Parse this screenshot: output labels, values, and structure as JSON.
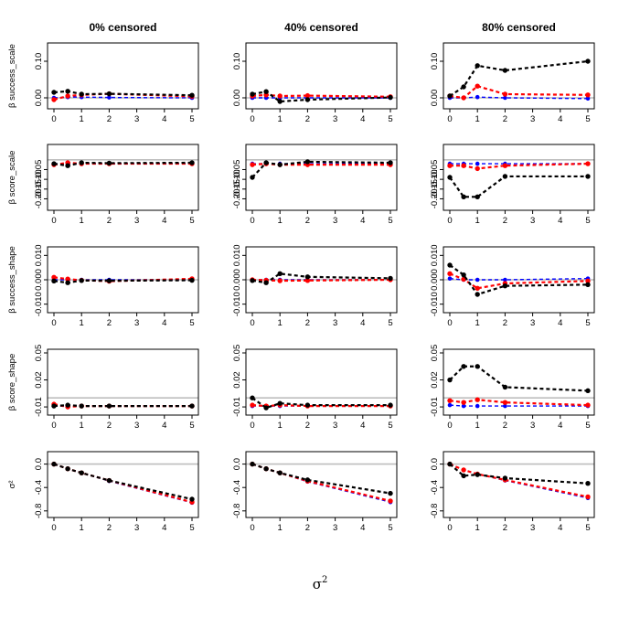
{
  "chart_data": {
    "type": "line",
    "title": "",
    "xlabel_base": "σ",
    "xlabel_sup": "2",
    "x": [
      0,
      0.5,
      1,
      2,
      5
    ],
    "x_axis": {
      "range": [
        0,
        5
      ],
      "ticks": [
        "0",
        "1",
        "2",
        "3",
        "4",
        "5"
      ]
    },
    "columns": [
      "0% censored",
      "40% censored",
      "80% censored"
    ],
    "series_colors": {
      "black": "#000000",
      "red": "#ff0000",
      "blue": "#0000ff",
      "reference": "#bebebe"
    },
    "rows": [
      {
        "ylabel": "β success_scale",
        "ylim": [
          -0.02,
          0.14
        ],
        "yticks": [
          "0.00",
          "0.10"
        ],
        "ytick_values": [
          0.0,
          0.1
        ],
        "panels": [
          {
            "black": [
              0.015,
              0.018,
              0.01,
              0.011,
              0.007
            ],
            "red": [
              -0.005,
              0.005,
              0.008,
              0.011,
              0.004
            ],
            "blue": [
              0.0,
              0.002,
              0.002,
              0.001,
              0.0
            ]
          },
          {
            "black": [
              0.01,
              0.017,
              -0.01,
              -0.005,
              0.001
            ],
            "red": [
              0.005,
              0.008,
              0.005,
              0.006,
              0.003
            ],
            "blue": [
              0.0,
              0.0,
              0.0,
              0.0,
              0.0
            ]
          },
          {
            "black": [
              0.005,
              0.03,
              0.088,
              0.075,
              0.1
            ],
            "red": [
              0.005,
              0.0,
              0.032,
              0.01,
              0.008
            ],
            "blue": [
              0.0,
              0.0,
              0.002,
              0.0,
              -0.002
            ]
          }
        ]
      },
      {
        "ylabel": "β score_scale",
        "ylim": [
          -0.24,
          0.06
        ],
        "yticks": [
          "-0.05",
          "-0.10",
          "-0.15",
          "-0.20"
        ],
        "ytick_values": [
          -0.05,
          -0.1,
          -0.15,
          -0.2
        ],
        "panels": [
          {
            "black": [
              -0.02,
              -0.03,
              -0.015,
              -0.017,
              -0.015
            ],
            "red": [
              -0.025,
              -0.015,
              -0.02,
              -0.02,
              -0.02
            ],
            "blue": [
              -0.02,
              -0.02,
              -0.02,
              -0.02,
              -0.02
            ]
          },
          {
            "black": [
              -0.09,
              -0.015,
              -0.025,
              -0.01,
              -0.015
            ],
            "red": [
              -0.025,
              -0.02,
              -0.025,
              -0.025,
              -0.025
            ],
            "blue": [
              -0.02,
              -0.02,
              -0.02,
              -0.02,
              -0.02
            ]
          },
          {
            "black": [
              -0.09,
              -0.19,
              -0.19,
              -0.085,
              -0.085
            ],
            "red": [
              -0.03,
              -0.03,
              -0.045,
              -0.03,
              -0.02
            ],
            "blue": [
              -0.02,
              -0.02,
              -0.02,
              -0.02,
              -0.02
            ]
          }
        ]
      },
      {
        "ylabel": "β success_shape",
        "ylim": [
          -0.012,
          0.012
        ],
        "yticks": [
          "0.010",
          "0.000",
          "-0.010"
        ],
        "ytick_values": [
          0.01,
          0.0,
          -0.01
        ],
        "panels": [
          {
            "black": [
              -0.0005,
              -0.0012,
              -0.0003,
              -0.0004,
              -0.0002
            ],
            "red": [
              0.001,
              0.0003,
              -0.0002,
              -0.0006,
              0.0004
            ],
            "blue": [
              0.0,
              0.0,
              0.0,
              0.0,
              0.0
            ]
          },
          {
            "black": [
              -0.0003,
              -0.0012,
              0.0025,
              0.0012,
              0.0006
            ],
            "red": [
              0.0,
              -0.0002,
              -0.0004,
              -0.0003,
              0.0
            ],
            "blue": [
              0.0,
              0.0,
              0.0,
              0.0,
              0.0
            ]
          },
          {
            "black": [
              0.006,
              0.002,
              -0.006,
              -0.0025,
              -0.002
            ],
            "red": [
              0.0025,
              0.0002,
              -0.0035,
              -0.0015,
              -0.0005
            ],
            "blue": [
              0.0005,
              0.0,
              0.0,
              0.0,
              0.0005
            ]
          }
        ]
      },
      {
        "ylabel": "β score_shape",
        "ylim": [
          -0.015,
          0.05
        ],
        "yticks": [
          "0.05",
          "0.02",
          "-0.01"
        ],
        "ytick_values": [
          0.05,
          0.02,
          -0.01
        ],
        "panels": [
          {
            "black": [
              -0.009,
              -0.008,
              -0.009,
              -0.009,
              -0.009
            ],
            "red": [
              -0.007,
              -0.01,
              -0.009,
              -0.009,
              -0.009
            ],
            "blue": [
              -0.009,
              -0.009,
              -0.009,
              -0.009,
              -0.009
            ]
          },
          {
            "black": [
              0.0,
              -0.011,
              -0.006,
              -0.008,
              -0.008
            ],
            "red": [
              -0.008,
              -0.009,
              -0.008,
              -0.009,
              -0.009
            ],
            "blue": [
              -0.009,
              -0.009,
              -0.009,
              -0.009,
              -0.009
            ]
          },
          {
            "black": [
              0.02,
              0.035,
              0.035,
              0.012,
              0.008
            ],
            "red": [
              -0.003,
              -0.005,
              -0.002,
              -0.005,
              -0.008
            ],
            "blue": [
              -0.008,
              -0.009,
              -0.009,
              -0.009,
              -0.009
            ]
          }
        ]
      },
      {
        "ylabel": "σ²",
        "ylim": [
          -0.85,
          0.15
        ],
        "yticks": [
          "0.0",
          "-0.4",
          "-0.8"
        ],
        "ytick_values": [
          0.0,
          -0.4,
          -0.8
        ],
        "panels": [
          {
            "black": [
              0.0,
              -0.08,
              -0.15,
              -0.28,
              -0.6
            ],
            "red": [
              0.0,
              -0.08,
              -0.15,
              -0.28,
              -0.65
            ],
            "blue": [
              0.0,
              -0.08,
              -0.15,
              -0.29,
              -0.66
            ]
          },
          {
            "black": [
              0.0,
              -0.08,
              -0.15,
              -0.27,
              -0.5
            ],
            "red": [
              0.0,
              -0.08,
              -0.15,
              -0.29,
              -0.63
            ],
            "blue": [
              0.0,
              -0.08,
              -0.15,
              -0.3,
              -0.65
            ]
          },
          {
            "black": [
              0.0,
              -0.2,
              -0.18,
              -0.24,
              -0.33
            ],
            "red": [
              0.0,
              -0.1,
              -0.17,
              -0.27,
              -0.56
            ],
            "blue": [
              0.0,
              -0.1,
              -0.17,
              -0.28,
              -0.58
            ]
          }
        ]
      }
    ]
  }
}
